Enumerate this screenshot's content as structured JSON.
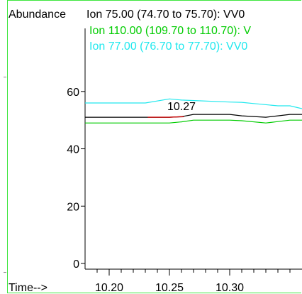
{
  "chart_data": {
    "type": "line",
    "ylabel": "Abundance",
    "xlabel": "Time-->",
    "xlim": [
      10.18,
      10.36
    ],
    "ylim": [
      0,
      82
    ],
    "x_ticks": [
      {
        "value": 10.2,
        "label": "10.20"
      },
      {
        "value": 10.25,
        "label": "10.25"
      },
      {
        "value": 10.3,
        "label": "10.30"
      }
    ],
    "y_ticks": [
      {
        "value": 0,
        "label": "0"
      },
      {
        "value": 20,
        "label": "20"
      },
      {
        "value": 40,
        "label": "40"
      },
      {
        "value": 60,
        "label": "60"
      }
    ],
    "grid": false,
    "legend_placement": "top",
    "series": [
      {
        "name": "Ion  75.00 (74.70 to 75.70): VV0",
        "color": "#000000",
        "x": [
          10.18,
          10.25,
          10.26,
          10.27,
          10.3,
          10.31,
          10.33,
          10.34,
          10.35,
          10.36
        ],
        "y": [
          51,
          51,
          51.2,
          52,
          52,
          51.5,
          51,
          51.5,
          52,
          52
        ]
      },
      {
        "name": "Ion 110.00 (109.70 to 110.70): V",
        "color": "#00cc00",
        "x": [
          10.18,
          10.25,
          10.26,
          10.27,
          10.3,
          10.31,
          10.33,
          10.34,
          10.35,
          10.36
        ],
        "y": [
          49,
          49,
          49.4,
          50,
          50,
          49.8,
          49,
          49.5,
          50,
          50
        ]
      },
      {
        "name": "Ion  77.00 (76.70 to 77.70): VV0",
        "color": "#20e8ee",
        "x": [
          10.18,
          10.22,
          10.23,
          10.25,
          10.26,
          10.3,
          10.31,
          10.32,
          10.34,
          10.35,
          10.36
        ],
        "y": [
          56,
          56,
          56,
          57.4,
          57,
          56.3,
          56.2,
          55.8,
          55,
          55,
          54
        ]
      }
    ],
    "peak_segment": {
      "color": "#cc0000",
      "x": [
        10.232,
        10.25,
        10.262
      ],
      "y": [
        51,
        51,
        51.2
      ]
    },
    "annotations": [
      {
        "text": "10.27",
        "x": 10.26,
        "y": 53.5
      }
    ]
  }
}
